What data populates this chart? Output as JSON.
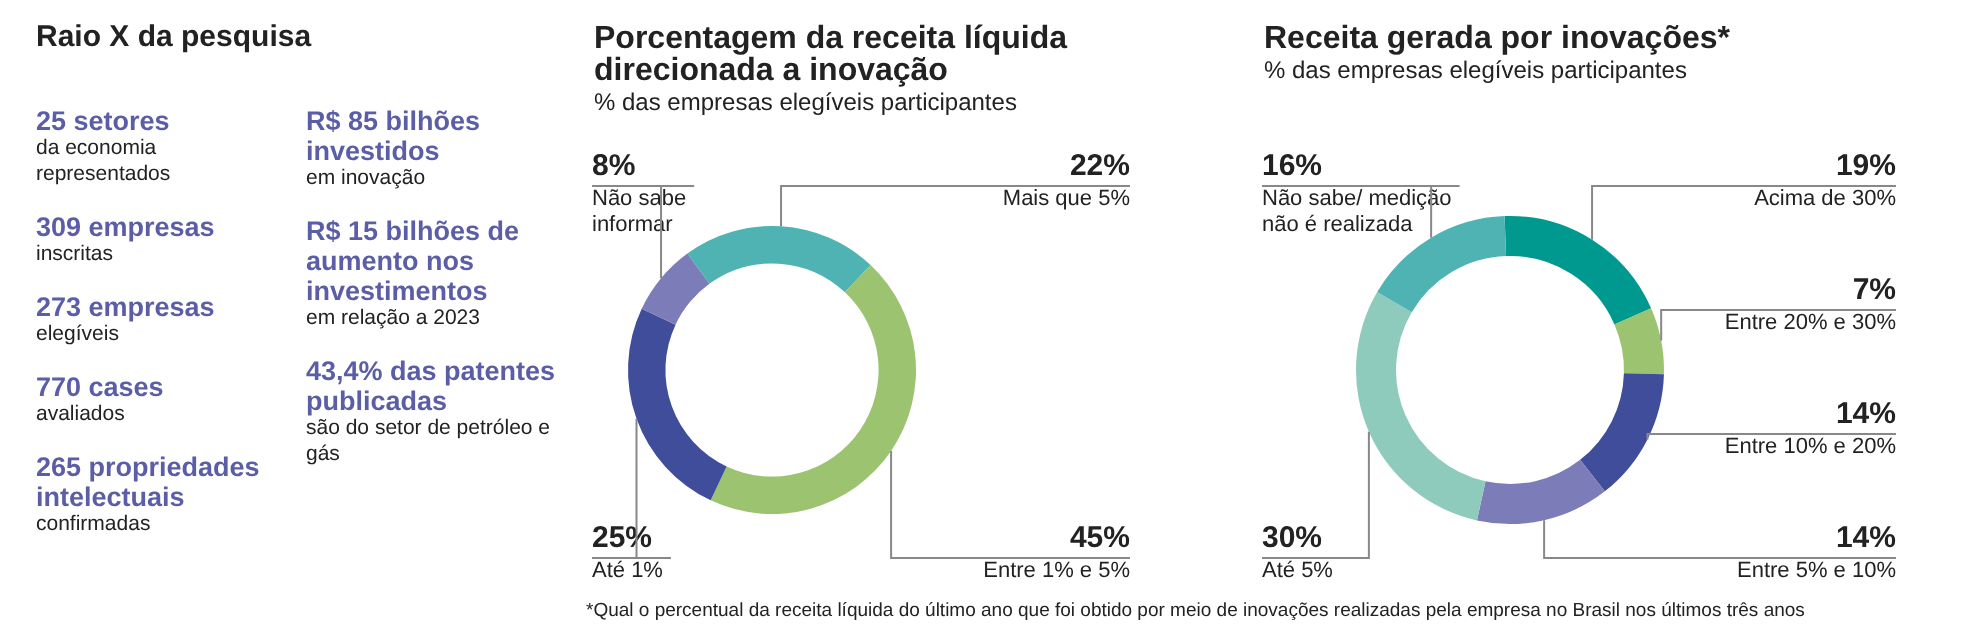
{
  "chart_data": [
    {
      "type": "other",
      "title": "Raio X da pesquisa",
      "annotations": [
        "25 setores",
        "da economia representados",
        "309 empresas",
        "inscritas",
        "273 empresas",
        "elegíveis",
        "770 cases",
        "avaliados",
        "265 propriedades intelectuais",
        "confirmadas",
        "R$ 85 bilhões investidos",
        "em inovação",
        "R$ 15 bilhões de aumento nos investimentos",
        "em relação a 2023",
        "43,4% das patentes publicadas",
        "são do setor de petróleo e gás"
      ]
    },
    {
      "type": "donut",
      "title": "Porcentagem da receita líquida direcionada a inovação",
      "subtitle": "% das empresas elegíveis participantes",
      "categories": [
        "Mais que 5%",
        "Entre 1% e 5%",
        "Até 1%",
        "Não sabe informar"
      ],
      "values": [
        22,
        45,
        25,
        8
      ],
      "value_labels": [
        "22%",
        "45%",
        "25%",
        "8%"
      ],
      "colors": [
        "#4fb3b3",
        "#9cc36f",
        "#3f4d9b",
        "#7c7cb8"
      ],
      "legend": false
    },
    {
      "type": "donut",
      "title": "Receita gerada por inovações*",
      "subtitle": "% das empresas elegíveis participantes",
      "categories": [
        "Acima de 30%",
        "Entre 20% e 30%",
        "Entre 10% e 20%",
        "Entre 5% e 10%",
        "Até 5%",
        "Não sabe/ medição não é realizada"
      ],
      "values": [
        19,
        7,
        14,
        14,
        30,
        16
      ],
      "value_labels": [
        "19%",
        "7%",
        "14%",
        "14%",
        "30%",
        "16%"
      ],
      "colors": [
        "#00998f",
        "#9cc36f",
        "#3f4d9b",
        "#7c7cb8",
        "#8fcbbc",
        "#4fb3b3"
      ],
      "legend": false,
      "annotations": [
        "*Qual o percentual da receita líquida do último ano que foi obtido por meio de inovações realizadas pela empresa no Brasil nos últimos três anos"
      ]
    }
  ]
}
